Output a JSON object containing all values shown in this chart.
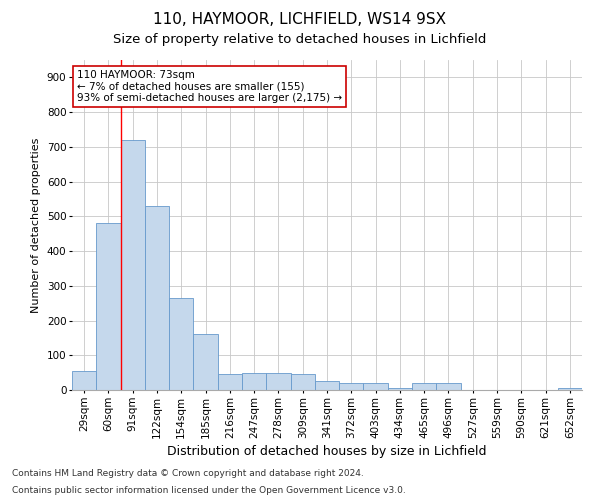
{
  "title1": "110, HAYMOOR, LICHFIELD, WS14 9SX",
  "title2": "Size of property relative to detached houses in Lichfield",
  "xlabel": "Distribution of detached houses by size in Lichfield",
  "ylabel": "Number of detached properties",
  "categories": [
    "29sqm",
    "60sqm",
    "91sqm",
    "122sqm",
    "154sqm",
    "185sqm",
    "216sqm",
    "247sqm",
    "278sqm",
    "309sqm",
    "341sqm",
    "372sqm",
    "403sqm",
    "434sqm",
    "465sqm",
    "496sqm",
    "527sqm",
    "559sqm",
    "590sqm",
    "621sqm",
    "652sqm"
  ],
  "bar_values": [
    55,
    480,
    720,
    530,
    265,
    160,
    45,
    50,
    50,
    45,
    25,
    20,
    20,
    5,
    20,
    20,
    0,
    0,
    0,
    0,
    5
  ],
  "bar_color": "#c5d8ec",
  "bar_edge_color": "#6699cc",
  "grid_color": "#c8c8c8",
  "redline_x": 1.5,
  "annotation_text": "110 HAYMOOR: 73sqm\n← 7% of detached houses are smaller (155)\n93% of semi-detached houses are larger (2,175) →",
  "annotation_box_color": "#ffffff",
  "annotation_box_edge": "#cc0000",
  "footer1": "Contains HM Land Registry data © Crown copyright and database right 2024.",
  "footer2": "Contains public sector information licensed under the Open Government Licence v3.0.",
  "ylim": [
    0,
    950
  ],
  "yticks": [
    0,
    100,
    200,
    300,
    400,
    500,
    600,
    700,
    800,
    900
  ],
  "title1_fontsize": 11,
  "title2_fontsize": 9.5,
  "xlabel_fontsize": 9,
  "ylabel_fontsize": 8,
  "tick_fontsize": 7.5,
  "footer_fontsize": 6.5,
  "ann_fontsize": 7.5
}
